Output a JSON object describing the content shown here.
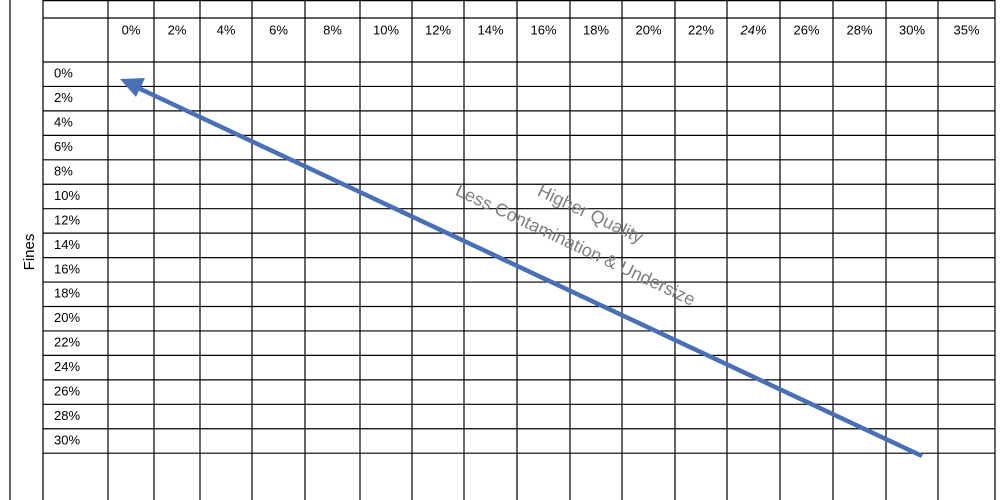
{
  "axis_label": "Fines",
  "columns": [
    "0%",
    "2%",
    "4%",
    "6%",
    "8%",
    "10%",
    "12%",
    "14%",
    "16%",
    "18%",
    "20%",
    "22%",
    "24%",
    "26%",
    "28%",
    "30%",
    "35%"
  ],
  "rows": [
    "0%",
    "2%",
    "4%",
    "6%",
    "8%",
    "10%",
    "12%",
    "14%",
    "16%",
    "18%",
    "20%",
    "22%",
    "24%",
    "26%",
    "28%",
    "30%"
  ],
  "annotations": [
    "Higher Quality",
    "Less Contamination & Undersize"
  ]
}
